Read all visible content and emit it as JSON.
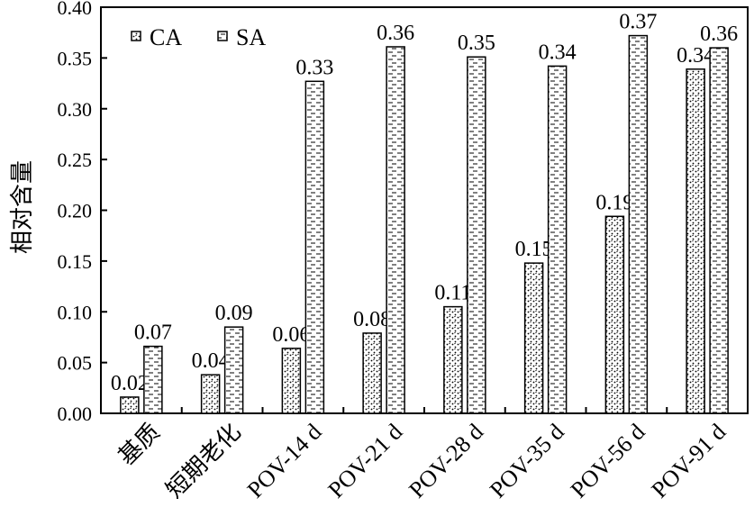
{
  "chart_data": {
    "type": "bar",
    "title": "",
    "xlabel": "",
    "ylabel": "相对含量",
    "ylim": [
      0,
      0.4
    ],
    "yticks": [
      "0.00",
      "0.05",
      "0.10",
      "0.15",
      "0.20",
      "0.25",
      "0.30",
      "0.35",
      "0.40"
    ],
    "categories": [
      "基质",
      "短期老化",
      "POV-14 d",
      "POV-21 d",
      "POV-28 d",
      "POV-35 d",
      "POV-56 d",
      "POV-91 d"
    ],
    "series": [
      {
        "name": "CA",
        "values": [
          0.016,
          0.038,
          0.064,
          0.079,
          0.105,
          0.148,
          0.194,
          0.339
        ],
        "labels": [
          "0.02",
          "0.04",
          "0.06",
          "0.08",
          "0.11",
          "0.15",
          "0.19",
          "0.34"
        ],
        "pattern": "dots"
      },
      {
        "name": "SA",
        "values": [
          0.066,
          0.085,
          0.327,
          0.361,
          0.351,
          0.342,
          0.372,
          0.36
        ],
        "labels": [
          "0.07",
          "0.09",
          "0.33",
          "0.36",
          "0.35",
          "0.34",
          "0.37",
          "0.36"
        ],
        "pattern": "dashes"
      }
    ],
    "legend": "top-left",
    "grid": false
  }
}
